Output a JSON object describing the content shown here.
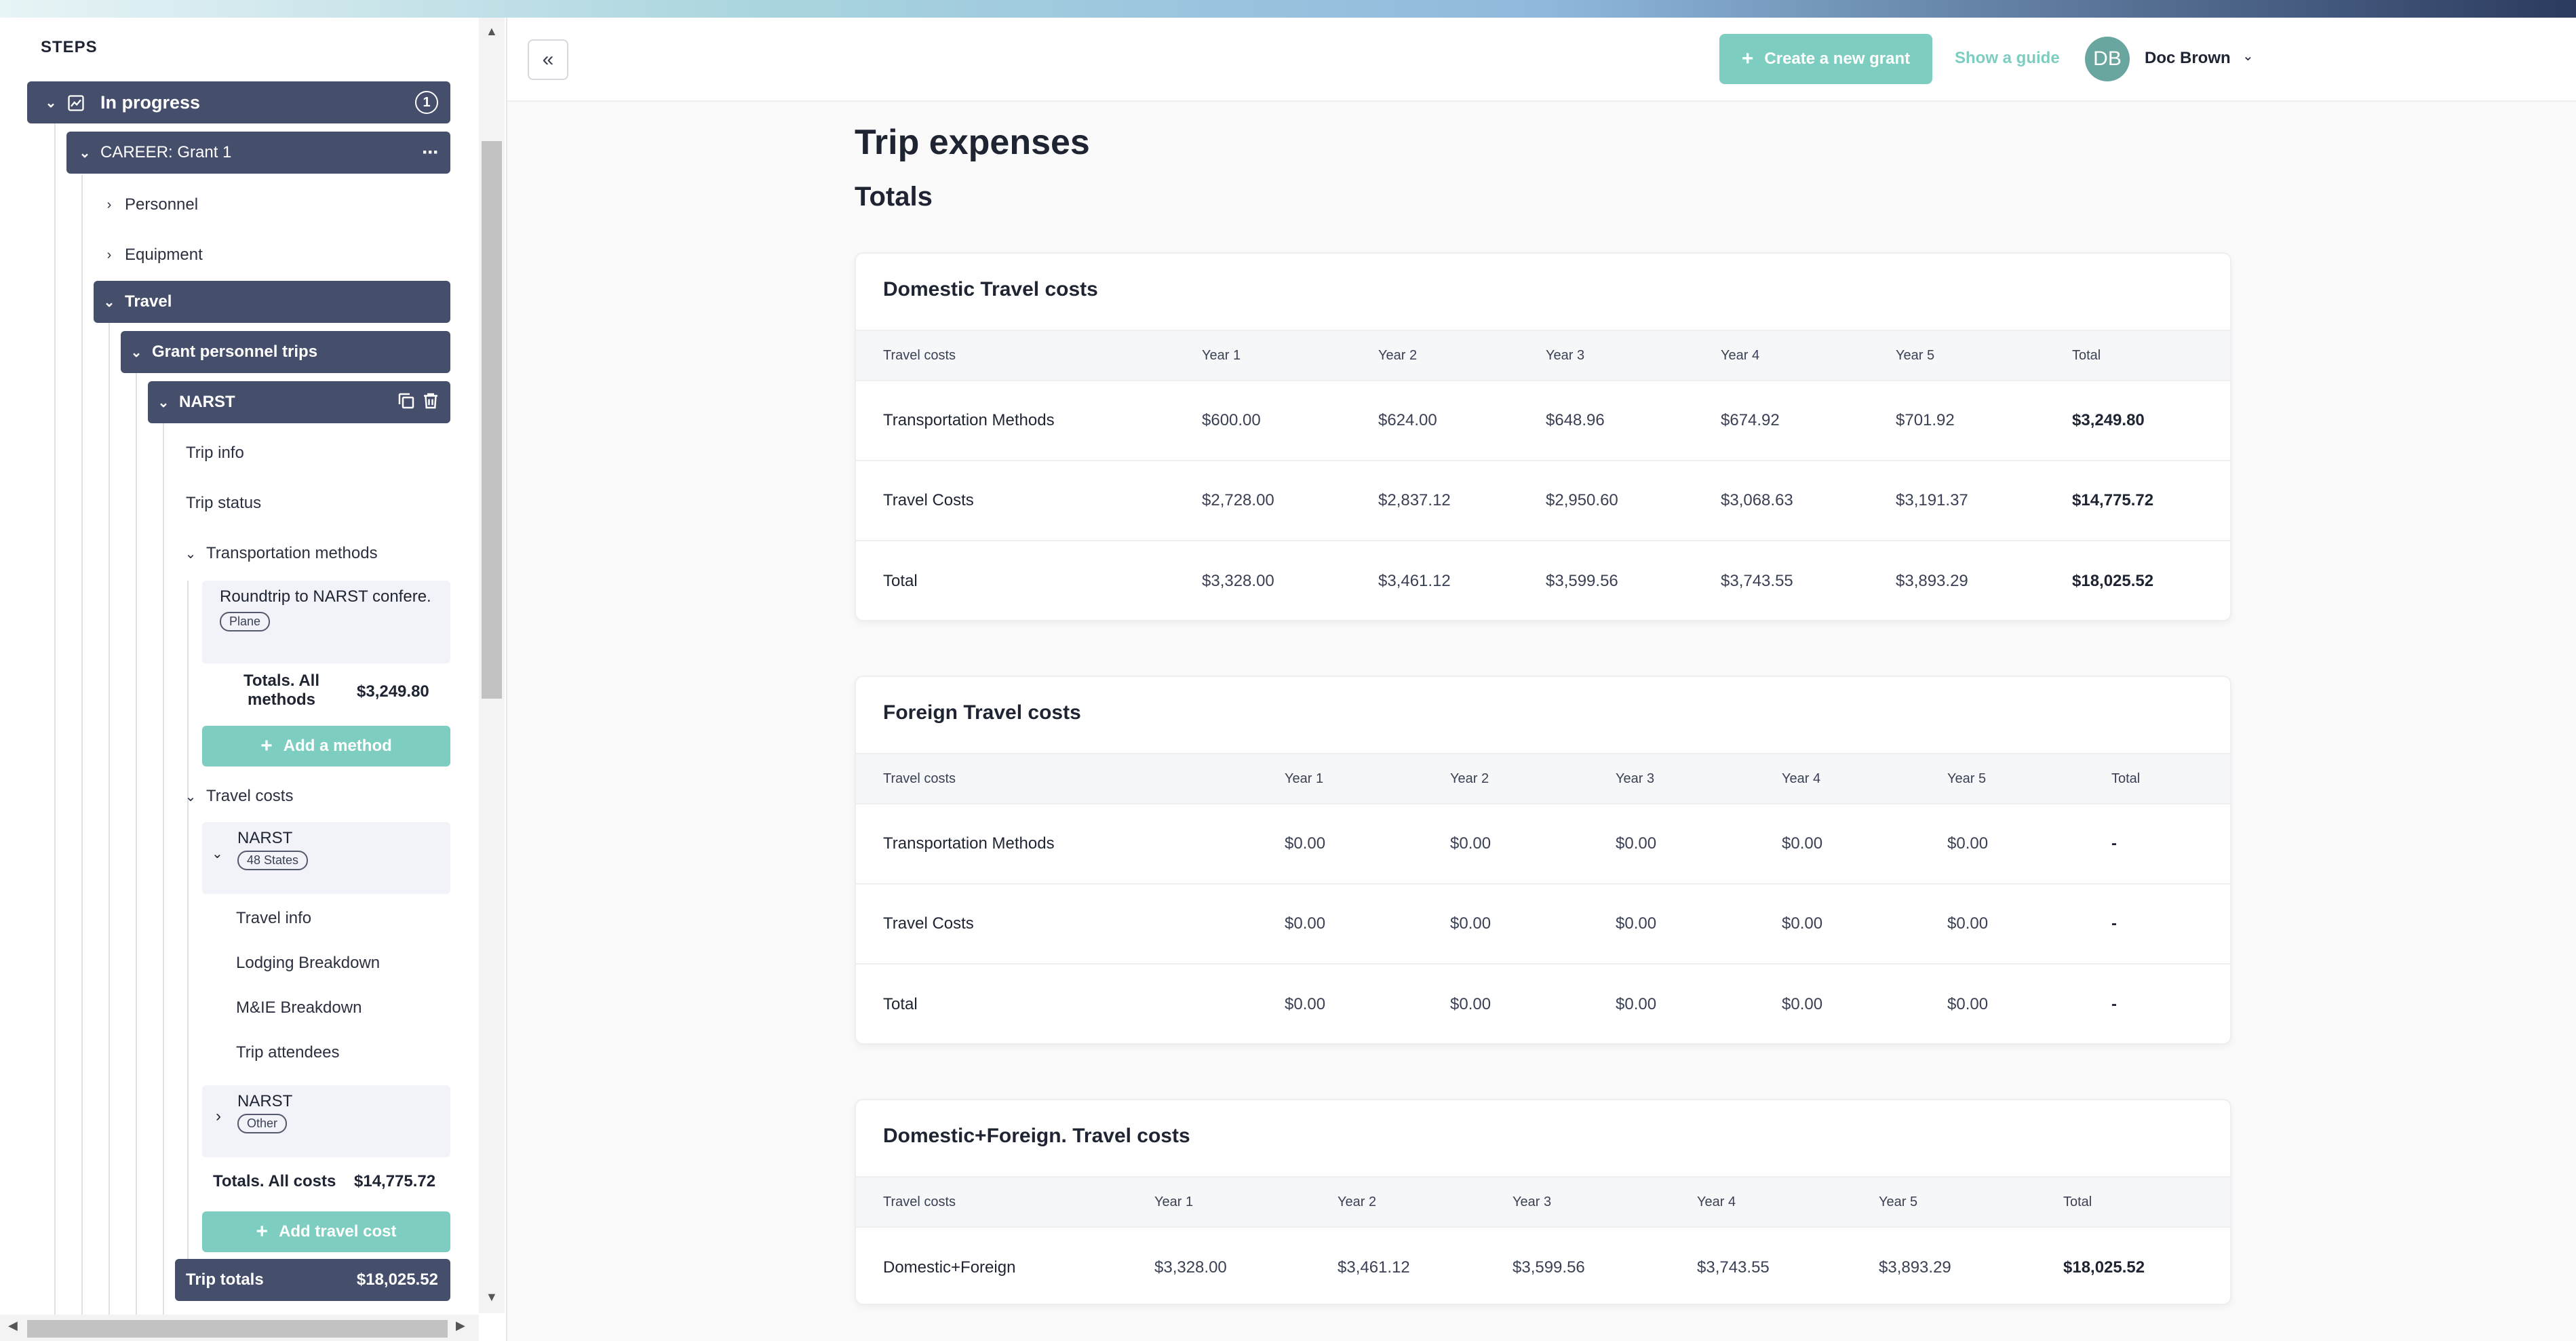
{
  "sidebar": {
    "steps_title": "STEPS",
    "in_progress": {
      "label": "In progress",
      "count": "1"
    },
    "grant": {
      "label": "CAREER: Grant 1"
    },
    "personnel": "Personnel",
    "equipment": "Equipment",
    "travel": "Travel",
    "grant_trips": "Grant personnel trips",
    "narst": "NARST",
    "trip_info": "Trip info",
    "trip_status": "Trip status",
    "transport_methods": "Transportation methods",
    "method_item": {
      "title": "Roundtrip to NARST confere...",
      "tag": "Plane"
    },
    "totals_methods": {
      "label": "Totals. All methods",
      "value": "$3,249.80"
    },
    "add_method": "Add a method",
    "travel_costs": "Travel costs",
    "cost_item_1": {
      "title": "NARST",
      "tag": "48 States"
    },
    "cost_subitems": [
      "Travel info",
      "Lodging Breakdown",
      "M&IE Breakdown",
      "Trip attendees"
    ],
    "cost_item_2": {
      "title": "NARST",
      "tag": "Other"
    },
    "totals_costs": {
      "label": "Totals. All costs",
      "value": "$14,775.72"
    },
    "add_travel_cost": "Add travel cost",
    "trip_totals": {
      "label": "Trip totals",
      "value": "$18,025.52"
    }
  },
  "header": {
    "create_grant": "Create a new grant",
    "show_guide": "Show a guide",
    "avatar_initials": "DB",
    "user_name": "Doc Brown"
  },
  "main": {
    "page_title": "Trip expenses",
    "section_title": "Totals",
    "tables": [
      {
        "title": "Domestic Travel costs",
        "headers": [
          "Travel costs",
          "Year 1",
          "Year 2",
          "Year 3",
          "Year 4",
          "Year 5",
          "Total"
        ],
        "rows": [
          [
            "Transportation Methods",
            "$600.00",
            "$624.00",
            "$648.96",
            "$674.92",
            "$701.92",
            "$3,249.80"
          ],
          [
            "Travel Costs",
            "$2,728.00",
            "$2,837.12",
            "$2,950.60",
            "$3,068.63",
            "$3,191.37",
            "$14,775.72"
          ],
          [
            "Total",
            "$3,328.00",
            "$3,461.12",
            "$3,599.56",
            "$3,743.55",
            "$3,893.29",
            "$18,025.52"
          ]
        ]
      },
      {
        "title": "Foreign Travel costs",
        "headers": [
          "Travel costs",
          "Year 1",
          "Year 2",
          "Year 3",
          "Year 4",
          "Year 5",
          "Total"
        ],
        "rows": [
          [
            "Transportation Methods",
            "$0.00",
            "$0.00",
            "$0.00",
            "$0.00",
            "$0.00",
            "-"
          ],
          [
            "Travel Costs",
            "$0.00",
            "$0.00",
            "$0.00",
            "$0.00",
            "$0.00",
            "-"
          ],
          [
            "Total",
            "$0.00",
            "$0.00",
            "$0.00",
            "$0.00",
            "$0.00",
            "-"
          ]
        ]
      },
      {
        "title": "Domestic+Foreign. Travel costs",
        "headers": [
          "Travel costs",
          "Year 1",
          "Year 2",
          "Year 3",
          "Year 4",
          "Year 5",
          "Total"
        ],
        "rows": [
          [
            "Domestic+Foreign",
            "$3,328.00",
            "$3,461.12",
            "$3,599.56",
            "$3,743.55",
            "$3,893.29",
            "$18,025.52"
          ]
        ]
      }
    ]
  }
}
